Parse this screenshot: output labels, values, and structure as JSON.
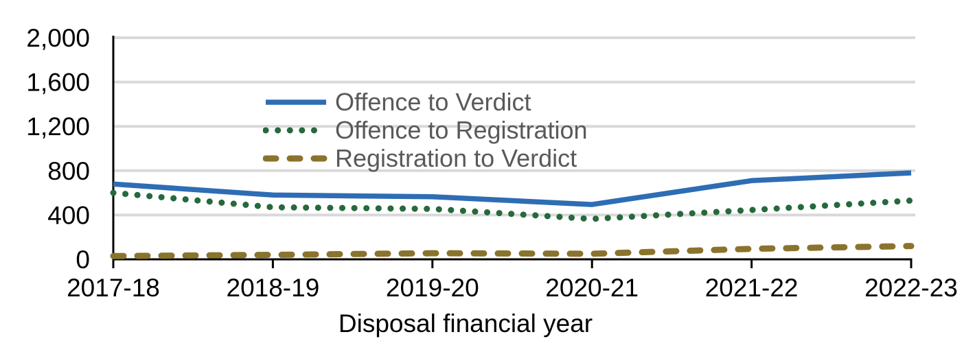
{
  "chart_data": {
    "type": "line",
    "title": "",
    "xlabel": "Disposal financial year",
    "ylabel": "",
    "categories": [
      "2017-18",
      "2018-19",
      "2019-20",
      "2020-21",
      "2021-22",
      "2022-23"
    ],
    "series": [
      {
        "name": "Offence to Verdict",
        "style": "solid",
        "color": "#2E6DB4",
        "values": [
          680,
          580,
          565,
          495,
          710,
          780
        ]
      },
      {
        "name": "Offence to Registration",
        "style": "dotted",
        "color": "#26693C",
        "values": [
          600,
          470,
          455,
          365,
          445,
          530
        ]
      },
      {
        "name": "Registration to Verdict",
        "style": "dashed",
        "color": "#8A732C",
        "values": [
          30,
          40,
          55,
          50,
          95,
          120
        ]
      }
    ],
    "ylim": [
      0,
      2000
    ],
    "y_ticks": [
      0,
      400,
      800,
      1200,
      1600,
      2000
    ],
    "y_tick_labels": [
      "0",
      "400",
      "800",
      "1,200",
      "1,600",
      "2,000"
    ],
    "grid": true,
    "legend_position": "inside-top-left"
  },
  "colors": {
    "background": "#FFFFFF",
    "gridline": "#D9D9D9",
    "axis": "#000000",
    "tick_label_text": "#000000",
    "legend_text": "#595959"
  }
}
